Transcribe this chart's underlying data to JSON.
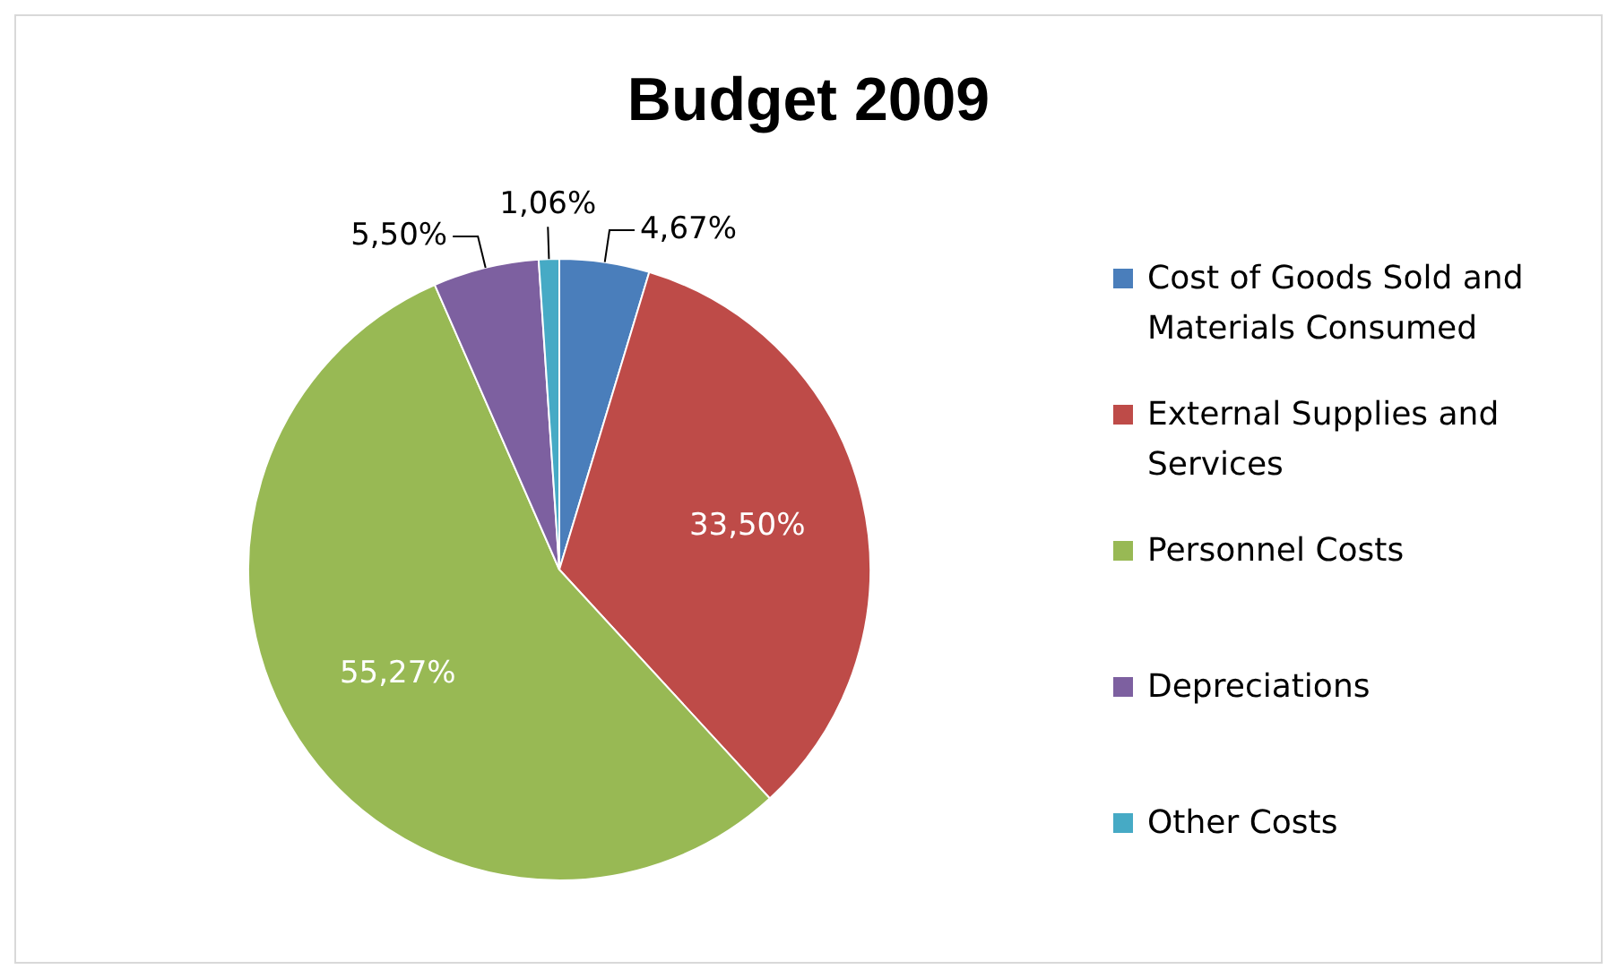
{
  "chart_data": {
    "type": "pie",
    "title": "Budget 2009",
    "categories": [
      "Cost of Goods Sold and Materials Consumed",
      "External Supplies and Services",
      "Personnel Costs",
      "Depreciations",
      "Other Costs"
    ],
    "values": [
      4.67,
      33.5,
      55.27,
      5.5,
      1.06
    ],
    "colors": [
      "#4a7ebb",
      "#be4b48",
      "#98b954",
      "#7d60a0",
      "#46aac5"
    ],
    "value_labels": [
      "4,67%",
      "33,50%",
      "55,27%",
      "5,50%",
      "1,06%"
    ],
    "legend": "right"
  }
}
